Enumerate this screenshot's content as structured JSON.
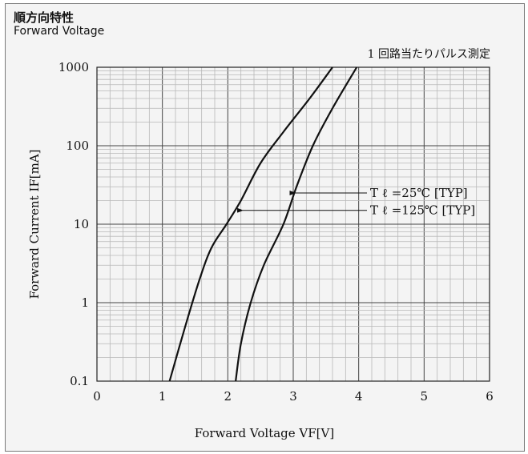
{
  "header": {
    "title_jp": "順方向特性",
    "title_en": "Forward Voltage"
  },
  "chart_data": {
    "type": "line",
    "title": "順方向特性 Forward Voltage",
    "note": "1 回路当たりパルス測定",
    "xlabel": "Forward Voltage VF[V]",
    "ylabel": "Forward Current IF[mA]",
    "x_ticks": [
      "0",
      "1",
      "2",
      "3",
      "4",
      "5",
      "6"
    ],
    "y_ticks": [
      "0.1",
      "1",
      "10",
      "100",
      "1000"
    ],
    "xlim": [
      0,
      6
    ],
    "ylim": [
      0.1,
      1000
    ],
    "y_scale": "log",
    "grid": true,
    "series": [
      {
        "name": "T ℓ =25℃ [TYP]",
        "points": [
          [
            1.11,
            0.1
          ],
          [
            1.35,
            0.5
          ],
          [
            1.57,
            2
          ],
          [
            1.75,
            5
          ],
          [
            1.98,
            10
          ],
          [
            2.2,
            20
          ],
          [
            2.5,
            60
          ],
          [
            2.85,
            150
          ],
          [
            3.25,
            400
          ],
          [
            3.6,
            1000
          ]
        ]
      },
      {
        "name": "T ℓ =125℃ [TYP]",
        "points": [
          [
            2.12,
            0.1
          ],
          [
            2.2,
            0.3
          ],
          [
            2.35,
            1
          ],
          [
            2.55,
            3
          ],
          [
            2.85,
            10
          ],
          [
            3.05,
            30
          ],
          [
            3.3,
            100
          ],
          [
            3.6,
            300
          ],
          [
            3.97,
            1000
          ]
        ]
      }
    ],
    "annotations": [
      {
        "label": "T ℓ =25℃ [TYP]",
        "series": 0,
        "point_x": 2.98,
        "point_y": 25
      },
      {
        "label": "T ℓ =125℃ [TYP]",
        "series": 1,
        "point_x": 2.18,
        "point_y": 15
      }
    ]
  }
}
